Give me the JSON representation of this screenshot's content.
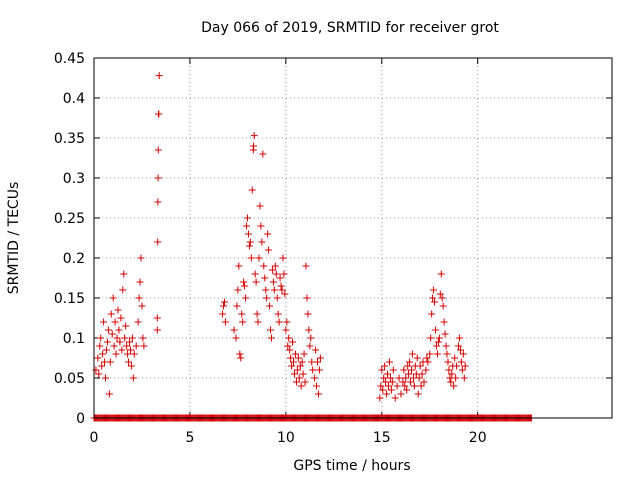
{
  "chart_data": {
    "type": "scatter",
    "title": "Day 066 of 2019, SRMTID for receiver grot",
    "xlabel": "GPS time / hours",
    "ylabel": "SRMTID / TECUs",
    "xlim": [
      0,
      27
    ],
    "ylim": [
      0,
      0.45
    ],
    "xticks": [
      0,
      5,
      10,
      15,
      20
    ],
    "xtick_labels": [
      "0",
      "5",
      "10",
      "15",
      "20"
    ],
    "yticks": [
      0,
      0.05,
      0.1,
      0.15,
      0.2,
      0.25,
      0.3,
      0.35,
      0.4,
      0.45
    ],
    "ytick_labels": [
      "0",
      "0.05",
      "0.1",
      "0.15",
      "0.2",
      "0.25",
      "0.3",
      "0.35",
      "0.4",
      "0.45"
    ],
    "grid": true,
    "marker": "+",
    "color": "#d40000",
    "zero_level_x_range": [
      0,
      22.8
    ],
    "series": [
      {
        "name": "SRMTID",
        "points": [
          [
            0.1,
            0.06
          ],
          [
            0.2,
            0.075
          ],
          [
            0.25,
            0.055
          ],
          [
            0.3,
            0.09
          ],
          [
            0.35,
            0.1
          ],
          [
            0.4,
            0.065
          ],
          [
            0.45,
            0.08
          ],
          [
            0.5,
            0.12
          ],
          [
            0.55,
            0.07
          ],
          [
            0.6,
            0.05
          ],
          [
            0.65,
            0.085
          ],
          [
            0.7,
            0.095
          ],
          [
            0.75,
            0.11
          ],
          [
            0.8,
            0.03
          ],
          [
            0.85,
            0.07
          ],
          [
            0.9,
            0.13
          ],
          [
            0.95,
            0.105
          ],
          [
            1.0,
            0.15
          ],
          [
            1.05,
            0.09
          ],
          [
            1.1,
            0.12
          ],
          [
            1.15,
            0.08
          ],
          [
            1.2,
            0.1
          ],
          [
            1.25,
            0.135
          ],
          [
            1.3,
            0.11
          ],
          [
            1.35,
            0.095
          ],
          [
            1.4,
            0.125
          ],
          [
            1.45,
            0.085
          ],
          [
            1.5,
            0.16
          ],
          [
            1.55,
            0.18
          ],
          [
            1.6,
            0.1
          ],
          [
            1.65,
            0.115
          ],
          [
            1.7,
            0.09
          ],
          [
            1.75,
            0.08
          ],
          [
            1.8,
            0.07
          ],
          [
            1.85,
            0.095
          ],
          [
            1.9,
            0.085
          ],
          [
            1.95,
            0.065
          ],
          [
            2.0,
            0.1
          ],
          [
            2.05,
            0.05
          ],
          [
            2.1,
            0.08
          ],
          [
            2.2,
            0.09
          ],
          [
            2.3,
            0.12
          ],
          [
            2.35,
            0.15
          ],
          [
            2.4,
            0.17
          ],
          [
            2.45,
            0.2
          ],
          [
            2.5,
            0.14
          ],
          [
            2.55,
            0.1
          ],
          [
            2.6,
            0.09
          ],
          [
            3.3,
            0.11
          ],
          [
            3.3,
            0.125
          ],
          [
            3.32,
            0.22
          ],
          [
            3.33,
            0.27
          ],
          [
            3.34,
            0.3
          ],
          [
            3.35,
            0.335
          ],
          [
            3.36,
            0.38
          ],
          [
            3.38,
            0.38
          ],
          [
            3.4,
            0.428
          ],
          [
            6.7,
            0.13
          ],
          [
            6.75,
            0.14
          ],
          [
            6.8,
            0.145
          ],
          [
            6.85,
            0.12
          ],
          [
            7.3,
            0.11
          ],
          [
            7.4,
            0.1
          ],
          [
            7.45,
            0.14
          ],
          [
            7.5,
            0.16
          ],
          [
            7.55,
            0.19
          ],
          [
            7.6,
            0.08
          ],
          [
            7.65,
            0.075
          ],
          [
            7.7,
            0.13
          ],
          [
            7.75,
            0.12
          ],
          [
            7.8,
            0.17
          ],
          [
            7.85,
            0.165
          ],
          [
            7.9,
            0.15
          ],
          [
            7.95,
            0.24
          ],
          [
            8.0,
            0.25
          ],
          [
            8.05,
            0.23
          ],
          [
            8.1,
            0.215
          ],
          [
            8.15,
            0.22
          ],
          [
            8.2,
            0.2
          ],
          [
            8.25,
            0.285
          ],
          [
            8.3,
            0.335
          ],
          [
            8.32,
            0.34
          ],
          [
            8.35,
            0.353
          ],
          [
            8.4,
            0.18
          ],
          [
            8.45,
            0.17
          ],
          [
            8.5,
            0.13
          ],
          [
            8.55,
            0.12
          ],
          [
            8.6,
            0.2
          ],
          [
            8.65,
            0.265
          ],
          [
            8.7,
            0.24
          ],
          [
            8.75,
            0.22
          ],
          [
            8.8,
            0.33
          ],
          [
            8.85,
            0.19
          ],
          [
            8.9,
            0.175
          ],
          [
            8.95,
            0.16
          ],
          [
            9.0,
            0.15
          ],
          [
            9.05,
            0.23
          ],
          [
            9.1,
            0.21
          ],
          [
            9.15,
            0.14
          ],
          [
            9.2,
            0.11
          ],
          [
            9.25,
            0.1
          ],
          [
            9.3,
            0.185
          ],
          [
            9.35,
            0.17
          ],
          [
            9.4,
            0.16
          ],
          [
            9.45,
            0.19
          ],
          [
            9.5,
            0.18
          ],
          [
            9.55,
            0.15
          ],
          [
            9.6,
            0.13
          ],
          [
            9.65,
            0.12
          ],
          [
            9.7,
            0.175
          ],
          [
            9.75,
            0.165
          ],
          [
            9.8,
            0.16
          ],
          [
            9.85,
            0.2
          ],
          [
            9.9,
            0.18
          ],
          [
            9.95,
            0.155
          ],
          [
            10.0,
            0.11
          ],
          [
            10.05,
            0.12
          ],
          [
            10.1,
            0.09
          ],
          [
            10.15,
            0.1
          ],
          [
            10.2,
            0.085
          ],
          [
            10.25,
            0.075
          ],
          [
            10.3,
            0.065
          ],
          [
            10.35,
            0.095
          ],
          [
            10.4,
            0.07
          ],
          [
            10.45,
            0.055
          ],
          [
            10.5,
            0.08
          ],
          [
            10.55,
            0.045
          ],
          [
            10.6,
            0.06
          ],
          [
            10.65,
            0.075
          ],
          [
            10.7,
            0.05
          ],
          [
            10.75,
            0.065
          ],
          [
            10.8,
            0.04
          ],
          [
            10.85,
            0.07
          ],
          [
            10.9,
            0.055
          ],
          [
            10.95,
            0.08
          ],
          [
            11.0,
            0.045
          ],
          [
            11.05,
            0.19
          ],
          [
            11.1,
            0.15
          ],
          [
            11.15,
            0.13
          ],
          [
            11.2,
            0.11
          ],
          [
            11.25,
            0.09
          ],
          [
            11.3,
            0.1
          ],
          [
            11.35,
            0.07
          ],
          [
            11.4,
            0.06
          ],
          [
            11.5,
            0.05
          ],
          [
            11.55,
            0.085
          ],
          [
            11.6,
            0.04
          ],
          [
            11.65,
            0.07
          ],
          [
            11.7,
            0.03
          ],
          [
            11.75,
            0.06
          ],
          [
            11.8,
            0.075
          ],
          [
            14.9,
            0.025
          ],
          [
            14.95,
            0.04
          ],
          [
            15.0,
            0.06
          ],
          [
            15.05,
            0.035
          ],
          [
            15.1,
            0.05
          ],
          [
            15.15,
            0.065
          ],
          [
            15.2,
            0.045
          ],
          [
            15.25,
            0.03
          ],
          [
            15.3,
            0.055
          ],
          [
            15.35,
            0.04
          ],
          [
            15.4,
            0.07
          ],
          [
            15.45,
            0.05
          ],
          [
            15.5,
            0.035
          ],
          [
            15.55,
            0.045
          ],
          [
            15.6,
            0.06
          ],
          [
            15.7,
            0.025
          ],
          [
            15.8,
            0.04
          ],
          [
            15.9,
            0.05
          ],
          [
            16.0,
            0.03
          ],
          [
            16.1,
            0.045
          ],
          [
            16.15,
            0.06
          ],
          [
            16.2,
            0.04
          ],
          [
            16.25,
            0.05
          ],
          [
            16.3,
            0.035
          ],
          [
            16.35,
            0.065
          ],
          [
            16.4,
            0.055
          ],
          [
            16.45,
            0.07
          ],
          [
            16.5,
            0.045
          ],
          [
            16.55,
            0.06
          ],
          [
            16.6,
            0.08
          ],
          [
            16.65,
            0.05
          ],
          [
            16.7,
            0.04
          ],
          [
            16.75,
            0.065
          ],
          [
            16.8,
            0.055
          ],
          [
            16.85,
            0.075
          ],
          [
            16.9,
            0.03
          ],
          [
            16.95,
            0.05
          ],
          [
            17.0,
            0.065
          ],
          [
            17.05,
            0.04
          ],
          [
            17.1,
            0.055
          ],
          [
            17.15,
            0.07
          ],
          [
            17.2,
            0.045
          ],
          [
            17.3,
            0.06
          ],
          [
            17.35,
            0.075
          ],
          [
            17.4,
            0.07
          ],
          [
            17.5,
            0.08
          ],
          [
            17.55,
            0.1
          ],
          [
            17.6,
            0.13
          ],
          [
            17.65,
            0.15
          ],
          [
            17.7,
            0.16
          ],
          [
            17.75,
            0.145
          ],
          [
            17.8,
            0.11
          ],
          [
            17.85,
            0.09
          ],
          [
            17.9,
            0.08
          ],
          [
            17.95,
            0.095
          ],
          [
            18.0,
            0.1
          ],
          [
            18.05,
            0.155
          ],
          [
            18.1,
            0.18
          ],
          [
            18.15,
            0.15
          ],
          [
            18.2,
            0.14
          ],
          [
            18.25,
            0.12
          ],
          [
            18.3,
            0.105
          ],
          [
            18.35,
            0.09
          ],
          [
            18.4,
            0.08
          ],
          [
            18.45,
            0.07
          ],
          [
            18.5,
            0.06
          ],
          [
            18.55,
            0.05
          ],
          [
            18.6,
            0.045
          ],
          [
            18.65,
            0.055
          ],
          [
            18.7,
            0.065
          ],
          [
            18.75,
            0.04
          ],
          [
            18.8,
            0.075
          ],
          [
            18.85,
            0.05
          ],
          [
            18.9,
            0.065
          ],
          [
            19.0,
            0.09
          ],
          [
            19.05,
            0.1
          ],
          [
            19.1,
            0.085
          ],
          [
            19.15,
            0.07
          ],
          [
            19.2,
            0.06
          ],
          [
            19.25,
            0.08
          ],
          [
            19.3,
            0.05
          ],
          [
            19.35,
            0.065
          ]
        ]
      }
    ]
  }
}
